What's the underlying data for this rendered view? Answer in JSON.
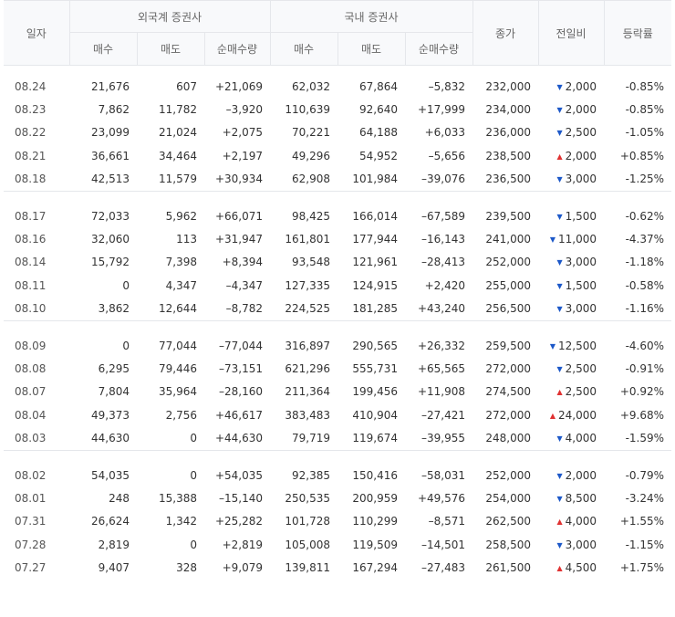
{
  "headers": {
    "date": "일자",
    "foreign": "외국계 증권사",
    "domestic": "국내 증권사",
    "buy": "매수",
    "sell": "매도",
    "net": "순매수량",
    "close": "종가",
    "change": "전일비",
    "rate": "등락률"
  },
  "groups": [
    [
      {
        "date": "08.24",
        "f_buy": "21,676",
        "f_sell": "607",
        "f_net": "+21,069",
        "d_buy": "62,032",
        "d_sell": "67,864",
        "d_net": "–5,832",
        "close": "232,000",
        "dir": "down",
        "change": "2,000",
        "rate": "-0.85%"
      },
      {
        "date": "08.23",
        "f_buy": "7,862",
        "f_sell": "11,782",
        "f_net": "–3,920",
        "d_buy": "110,639",
        "d_sell": "92,640",
        "d_net": "+17,999",
        "close": "234,000",
        "dir": "down",
        "change": "2,000",
        "rate": "-0.85%"
      },
      {
        "date": "08.22",
        "f_buy": "23,099",
        "f_sell": "21,024",
        "f_net": "+2,075",
        "d_buy": "70,221",
        "d_sell": "64,188",
        "d_net": "+6,033",
        "close": "236,000",
        "dir": "down",
        "change": "2,500",
        "rate": "-1.05%"
      },
      {
        "date": "08.21",
        "f_buy": "36,661",
        "f_sell": "34,464",
        "f_net": "+2,197",
        "d_buy": "49,296",
        "d_sell": "54,952",
        "d_net": "–5,656",
        "close": "238,500",
        "dir": "up",
        "change": "2,000",
        "rate": "+0.85%"
      },
      {
        "date": "08.18",
        "f_buy": "42,513",
        "f_sell": "11,579",
        "f_net": "+30,934",
        "d_buy": "62,908",
        "d_sell": "101,984",
        "d_net": "–39,076",
        "close": "236,500",
        "dir": "down",
        "change": "3,000",
        "rate": "-1.25%"
      }
    ],
    [
      {
        "date": "08.17",
        "f_buy": "72,033",
        "f_sell": "5,962",
        "f_net": "+66,071",
        "d_buy": "98,425",
        "d_sell": "166,014",
        "d_net": "–67,589",
        "close": "239,500",
        "dir": "down",
        "change": "1,500",
        "rate": "-0.62%"
      },
      {
        "date": "08.16",
        "f_buy": "32,060",
        "f_sell": "113",
        "f_net": "+31,947",
        "d_buy": "161,801",
        "d_sell": "177,944",
        "d_net": "–16,143",
        "close": "241,000",
        "dir": "down",
        "change": "11,000",
        "rate": "-4.37%"
      },
      {
        "date": "08.14",
        "f_buy": "15,792",
        "f_sell": "7,398",
        "f_net": "+8,394",
        "d_buy": "93,548",
        "d_sell": "121,961",
        "d_net": "–28,413",
        "close": "252,000",
        "dir": "down",
        "change": "3,000",
        "rate": "-1.18%"
      },
      {
        "date": "08.11",
        "f_buy": "0",
        "f_sell": "4,347",
        "f_net": "–4,347",
        "d_buy": "127,335",
        "d_sell": "124,915",
        "d_net": "+2,420",
        "close": "255,000",
        "dir": "down",
        "change": "1,500",
        "rate": "-0.58%"
      },
      {
        "date": "08.10",
        "f_buy": "3,862",
        "f_sell": "12,644",
        "f_net": "–8,782",
        "d_buy": "224,525",
        "d_sell": "181,285",
        "d_net": "+43,240",
        "close": "256,500",
        "dir": "down",
        "change": "3,000",
        "rate": "-1.16%"
      }
    ],
    [
      {
        "date": "08.09",
        "f_buy": "0",
        "f_sell": "77,044",
        "f_net": "–77,044",
        "d_buy": "316,897",
        "d_sell": "290,565",
        "d_net": "+26,332",
        "close": "259,500",
        "dir": "down",
        "change": "12,500",
        "rate": "-4.60%"
      },
      {
        "date": "08.08",
        "f_buy": "6,295",
        "f_sell": "79,446",
        "f_net": "–73,151",
        "d_buy": "621,296",
        "d_sell": "555,731",
        "d_net": "+65,565",
        "close": "272,000",
        "dir": "down",
        "change": "2,500",
        "rate": "-0.91%"
      },
      {
        "date": "08.07",
        "f_buy": "7,804",
        "f_sell": "35,964",
        "f_net": "–28,160",
        "d_buy": "211,364",
        "d_sell": "199,456",
        "d_net": "+11,908",
        "close": "274,500",
        "dir": "up",
        "change": "2,500",
        "rate": "+0.92%"
      },
      {
        "date": "08.04",
        "f_buy": "49,373",
        "f_sell": "2,756",
        "f_net": "+46,617",
        "d_buy": "383,483",
        "d_sell": "410,904",
        "d_net": "–27,421",
        "close": "272,000",
        "dir": "up",
        "change": "24,000",
        "rate": "+9.68%"
      },
      {
        "date": "08.03",
        "f_buy": "44,630",
        "f_sell": "0",
        "f_net": "+44,630",
        "d_buy": "79,719",
        "d_sell": "119,674",
        "d_net": "–39,955",
        "close": "248,000",
        "dir": "down",
        "change": "4,000",
        "rate": "-1.59%"
      }
    ],
    [
      {
        "date": "08.02",
        "f_buy": "54,035",
        "f_sell": "0",
        "f_net": "+54,035",
        "d_buy": "92,385",
        "d_sell": "150,416",
        "d_net": "–58,031",
        "close": "252,000",
        "dir": "down",
        "change": "2,000",
        "rate": "-0.79%"
      },
      {
        "date": "08.01",
        "f_buy": "248",
        "f_sell": "15,388",
        "f_net": "–15,140",
        "d_buy": "250,535",
        "d_sell": "200,959",
        "d_net": "+49,576",
        "close": "254,000",
        "dir": "down",
        "change": "8,500",
        "rate": "-3.24%"
      },
      {
        "date": "07.31",
        "f_buy": "26,624",
        "f_sell": "1,342",
        "f_net": "+25,282",
        "d_buy": "101,728",
        "d_sell": "110,299",
        "d_net": "–8,571",
        "close": "262,500",
        "dir": "up",
        "change": "4,000",
        "rate": "+1.55%"
      },
      {
        "date": "07.28",
        "f_buy": "2,819",
        "f_sell": "0",
        "f_net": "+2,819",
        "d_buy": "105,008",
        "d_sell": "119,509",
        "d_net": "–14,501",
        "close": "258,500",
        "dir": "down",
        "change": "3,000",
        "rate": "-1.15%"
      },
      {
        "date": "07.27",
        "f_buy": "9,407",
        "f_sell": "328",
        "f_net": "+9,079",
        "d_buy": "139,811",
        "d_sell": "167,294",
        "d_net": "–27,483",
        "close": "261,500",
        "dir": "up",
        "change": "4,500",
        "rate": "+1.75%"
      }
    ]
  ]
}
